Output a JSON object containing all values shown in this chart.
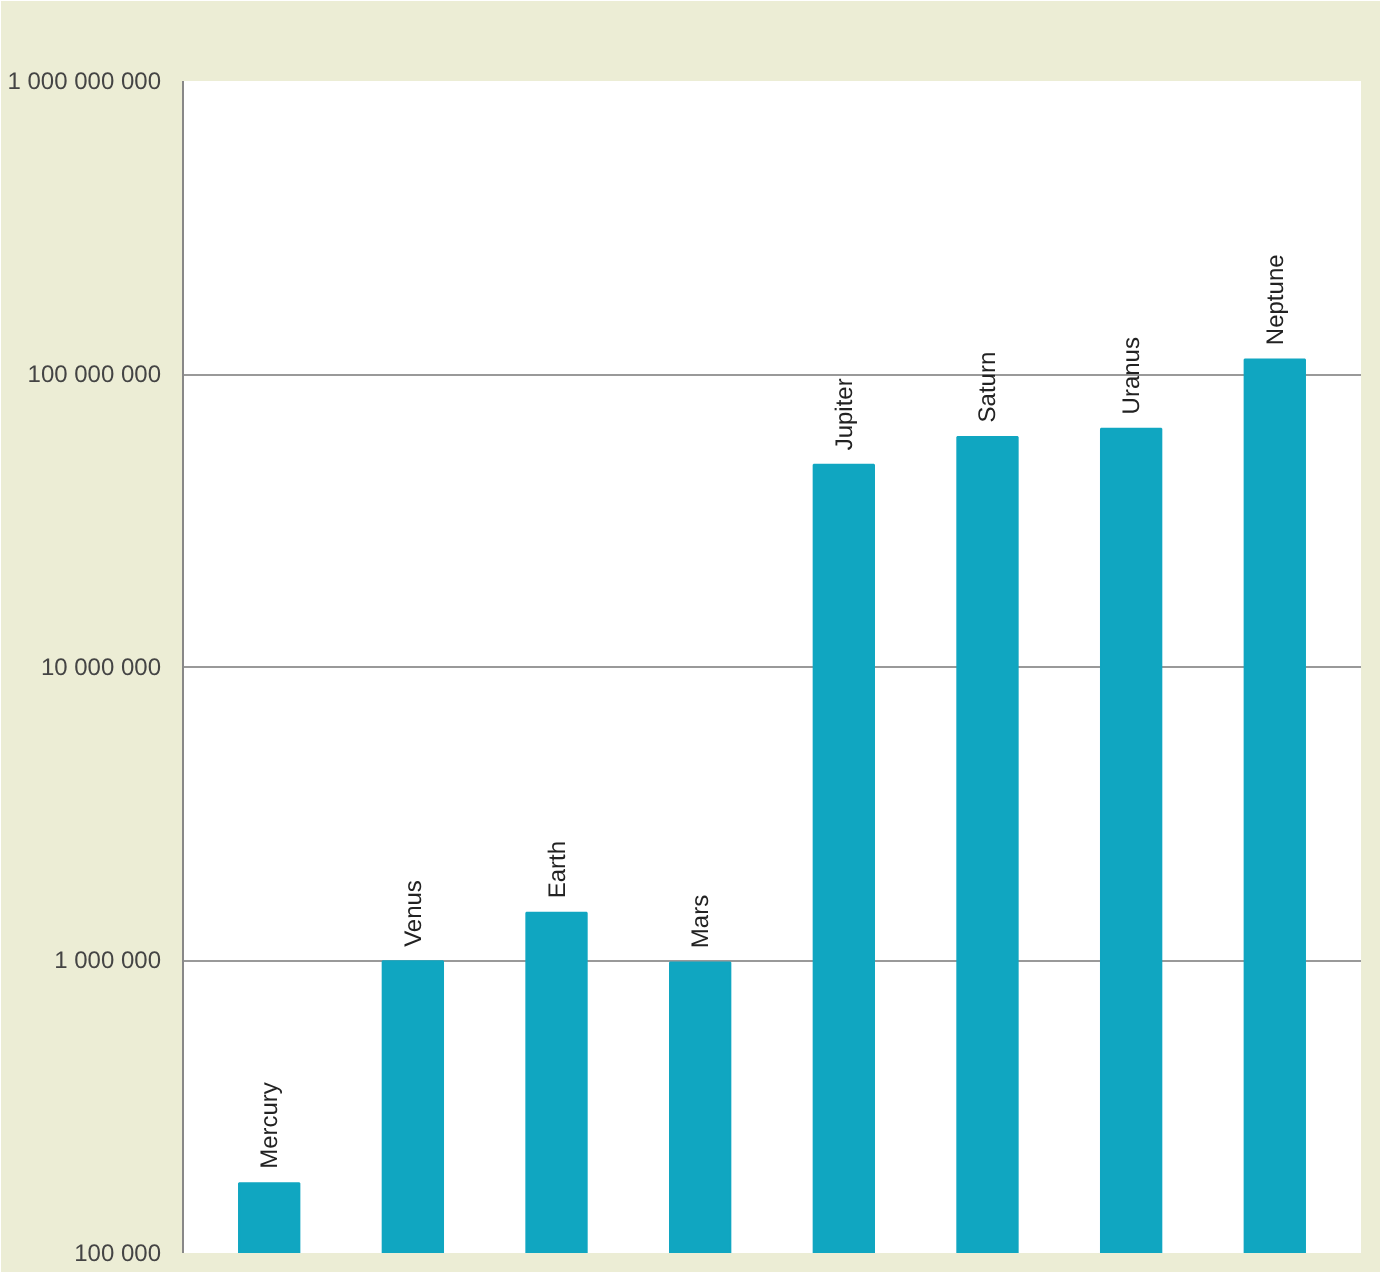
{
  "chart_data": {
    "type": "bar",
    "categories": [
      "Mercury",
      "Venus",
      "Earth",
      "Mars",
      "Jupiter",
      "Saturn",
      "Uranus",
      "Neptune"
    ],
    "values": [
      173000,
      990000,
      1450000,
      980000,
      49000000,
      61000000,
      65000000,
      112000000
    ],
    "color": "#10a6c1",
    "log": true,
    "ylim": [
      100000,
      1000000000
    ],
    "yticks": [
      {
        "value": 100000,
        "label": "100 000"
      },
      {
        "value": 1000000,
        "label": "1 000 000"
      },
      {
        "value": 10000000,
        "label": "10 000 000"
      },
      {
        "value": 100000000,
        "label": "100 000 000"
      },
      {
        "value": 1000000000,
        "label": "1 000 000 000"
      }
    ],
    "grid": "y",
    "tick_labels": "y"
  }
}
